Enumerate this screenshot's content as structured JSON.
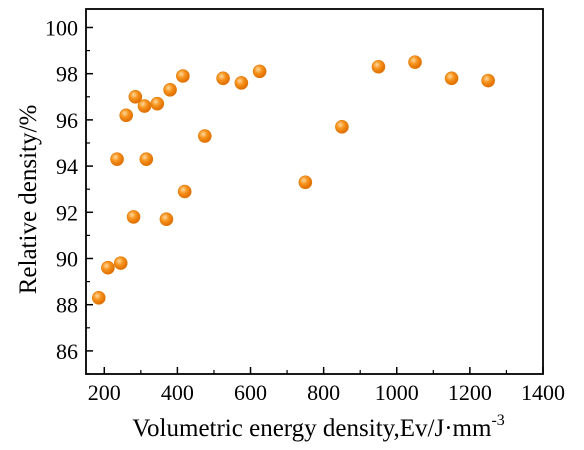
{
  "chart_data": {
    "type": "scatter",
    "title": "",
    "xlabel": "Volumetric energy density,Ev/J·mm",
    "xlabel_superscript": "-3",
    "ylabel": "Relative density/%",
    "xlim": [
      150,
      1400
    ],
    "ylim": [
      85,
      100.8
    ],
    "x_ticks": [
      200,
      400,
      600,
      800,
      1000,
      1200,
      1400
    ],
    "y_ticks": [
      86,
      88,
      90,
      92,
      94,
      96,
      98,
      100
    ],
    "grid": false,
    "legend": "none",
    "marker_color": "#f7941d",
    "points": [
      {
        "x": 185,
        "y": 88.3
      },
      {
        "x": 210,
        "y": 89.6
      },
      {
        "x": 235,
        "y": 94.3
      },
      {
        "x": 245,
        "y": 89.8
      },
      {
        "x": 260,
        "y": 96.2
      },
      {
        "x": 280,
        "y": 91.8
      },
      {
        "x": 285,
        "y": 97.0
      },
      {
        "x": 310,
        "y": 96.6
      },
      {
        "x": 315,
        "y": 94.3
      },
      {
        "x": 345,
        "y": 96.7
      },
      {
        "x": 370,
        "y": 91.7
      },
      {
        "x": 380,
        "y": 97.3
      },
      {
        "x": 415,
        "y": 97.9
      },
      {
        "x": 420,
        "y": 92.9
      },
      {
        "x": 475,
        "y": 95.3
      },
      {
        "x": 525,
        "y": 97.8
      },
      {
        "x": 575,
        "y": 97.6
      },
      {
        "x": 625,
        "y": 98.1
      },
      {
        "x": 750,
        "y": 93.3
      },
      {
        "x": 850,
        "y": 95.7
      },
      {
        "x": 950,
        "y": 98.3
      },
      {
        "x": 1050,
        "y": 98.5
      },
      {
        "x": 1150,
        "y": 97.8
      },
      {
        "x": 1250,
        "y": 97.7
      }
    ]
  }
}
